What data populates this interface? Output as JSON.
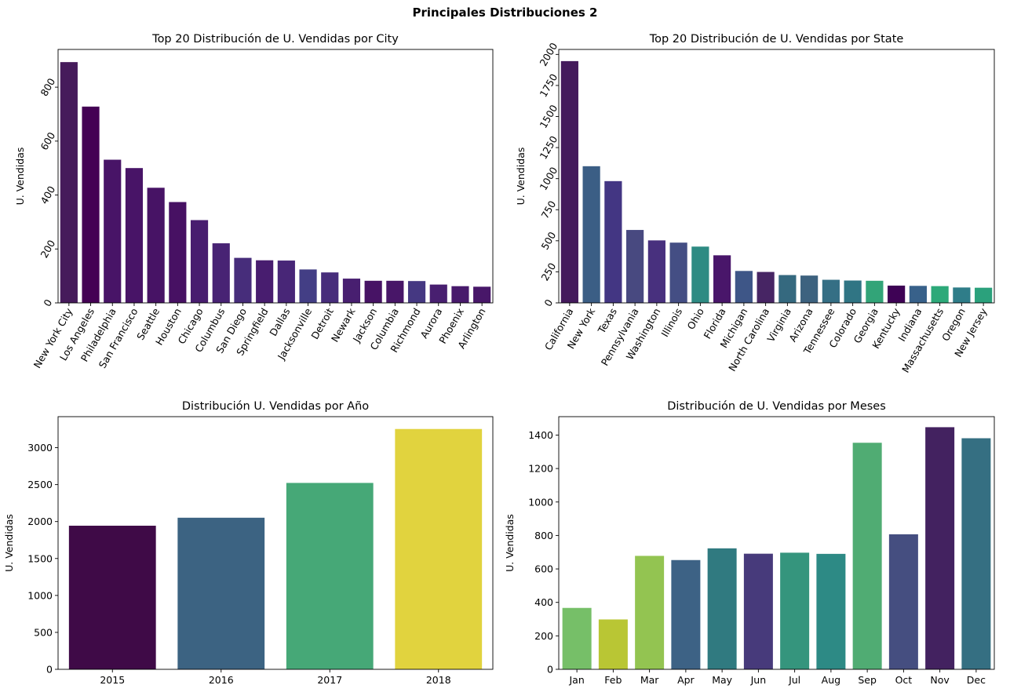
{
  "suptitle": "Principales Distribuciones 2",
  "chart_data": [
    {
      "type": "bar",
      "title": "Top 20 Distribución de U. Vendidas por City",
      "xlabel": "",
      "ylabel": "U. Vendidas",
      "ylim": [
        0,
        940
      ],
      "yticks": [
        0,
        200,
        400,
        600,
        800
      ],
      "ytick_rotation": 60,
      "xtick_rotation": 60,
      "categories": [
        "New York City",
        "Los Angeles",
        "Philadelphia",
        "San Francisco",
        "Seattle",
        "Houston",
        "Chicago",
        "Columbus",
        "San Diego",
        "Springfield",
        "Dallas",
        "Jacksonville",
        "Detroit",
        "Newark",
        "Jackson",
        "Columbia",
        "Richmond",
        "Aurora",
        "Phoenix",
        "Arlington"
      ],
      "values": [
        893,
        728,
        531,
        500,
        427,
        374,
        307,
        221,
        167,
        158,
        157,
        124,
        113,
        90,
        82,
        82,
        81,
        68,
        62,
        60
      ],
      "colors": [
        "#461b5b",
        "#440154",
        "#481467",
        "#481467",
        "#471365",
        "#471163",
        "#481d6f",
        "#482374",
        "#472d7b",
        "#481d6f",
        "#482677",
        "#433e85",
        "#472d7b",
        "#481f70",
        "#471365",
        "#481668",
        "#453882",
        "#481f70",
        "#481a6c",
        "#481769"
      ]
    },
    {
      "type": "bar",
      "title": "Top 20 Distribución de U. Vendidas por State",
      "xlabel": "",
      "ylabel": "U. Vendidas",
      "ylim": [
        0,
        2040
      ],
      "yticks": [
        0,
        250,
        500,
        750,
        1000,
        1250,
        1500,
        1750,
        2000
      ],
      "ytick_rotation": 60,
      "xtick_rotation": 60,
      "categories": [
        "California",
        "New York",
        "Texas",
        "Pennsylvania",
        "Washington",
        "Illinois",
        "Ohio",
        "Florida",
        "Michigan",
        "North Carolina",
        "Virginia",
        "Arizona",
        "Tennessee",
        "Colorado",
        "Georgia",
        "Kentucky",
        "Indiana",
        "Massachusetts",
        "Oregon",
        "New Jersey"
      ],
      "values": [
        1946,
        1100,
        980,
        587,
        503,
        485,
        453,
        383,
        257,
        249,
        224,
        220,
        186,
        180,
        178,
        139,
        137,
        135,
        124,
        122
      ],
      "colors": [
        "#441a5c",
        "#3b5e85",
        "#433683",
        "#484980",
        "#48307e",
        "#444e84",
        "#2e8b83",
        "#49166a",
        "#3e5687",
        "#472564",
        "#35697f",
        "#3d627f",
        "#356f85",
        "#307584",
        "#32a478",
        "#3e0255",
        "#38618a",
        "#2da979",
        "#2f7d89",
        "#2ba17c"
      ]
    },
    {
      "type": "bar",
      "title": "Distribución U. Vendidas por Año",
      "xlabel": "",
      "ylabel": "U. Vendidas",
      "ylim": [
        0,
        3420
      ],
      "yticks": [
        0,
        500,
        1000,
        1500,
        2000,
        2500,
        3000
      ],
      "categories": [
        "2015",
        "2016",
        "2017",
        "2018"
      ],
      "values": [
        1944,
        2052,
        2523,
        3253
      ],
      "colors": [
        "#3f0a47",
        "#3c6382",
        "#46a877",
        "#e1d33e"
      ]
    },
    {
      "type": "bar",
      "title": "Distribución de U. Vendidas por Meses",
      "xlabel": "",
      "ylabel": "U. Vendidas",
      "ylim": [
        0,
        1510
      ],
      "yticks": [
        0,
        200,
        400,
        600,
        800,
        1000,
        1200,
        1400
      ],
      "categories": [
        "Jan",
        "Feb",
        "Mar",
        "Apr",
        "May",
        "Jun",
        "Jul",
        "Aug",
        "Sep",
        "Oct",
        "Nov",
        "Dec"
      ],
      "values": [
        367,
        298,
        678,
        653,
        723,
        691,
        697,
        690,
        1354,
        807,
        1447,
        1381
      ],
      "colors": [
        "#76bf68",
        "#b9c634",
        "#93c451",
        "#3d6285",
        "#307a80",
        "#473a7b",
        "#35957d",
        "#2d8a85",
        "#50ac73",
        "#454e80",
        "#432260",
        "#356f82"
      ]
    }
  ]
}
